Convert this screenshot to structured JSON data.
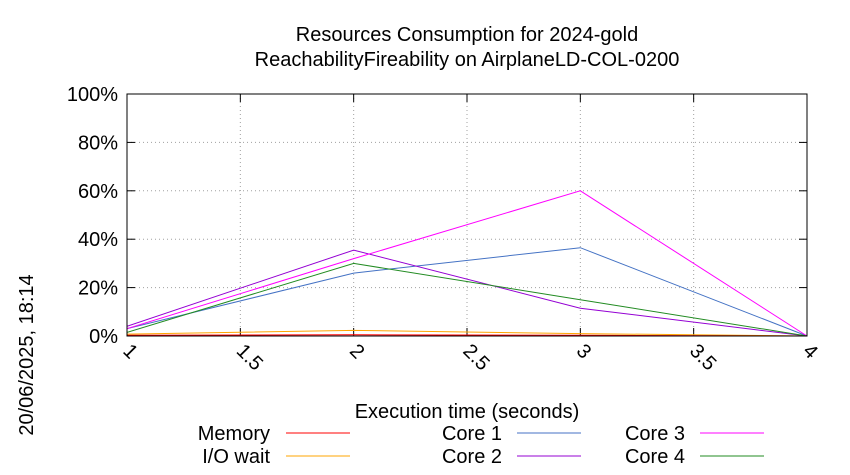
{
  "chart_data": {
    "type": "line",
    "title": "Resources Consumption for 2024-gold",
    "subtitle": "ReachabilityFireability on AirplaneLD-COL-0200",
    "xlabel": "Execution time (seconds)",
    "ylabel": "",
    "side_label": "20/06/2025, 18:14",
    "xlim": [
      1,
      4
    ],
    "ylim": [
      0,
      100
    ],
    "x_ticks": [
      "1",
      "1.5",
      "2",
      "2.5",
      "3",
      "3.5",
      "4"
    ],
    "y_ticks": [
      "0%",
      "20%",
      "40%",
      "60%",
      "80%",
      "100%"
    ],
    "grid": true,
    "legend_position": "bottom",
    "series": [
      {
        "name": "Memory",
        "color": "#ff0000",
        "x": [
          1,
          2,
          3,
          4
        ],
        "values": [
          0.3,
          0.5,
          0.3,
          0
        ]
      },
      {
        "name": "I/O wait",
        "color": "#ffa500",
        "x": [
          1,
          2,
          3,
          4
        ],
        "values": [
          0.8,
          2.3,
          1.0,
          0
        ]
      },
      {
        "name": "Core 1",
        "color": "#4472c4",
        "x": [
          1,
          2,
          3,
          4
        ],
        "values": [
          3,
          26,
          36.5,
          0
        ]
      },
      {
        "name": "Core 2",
        "color": "#9400d3",
        "x": [
          1,
          2,
          3,
          4
        ],
        "values": [
          4,
          35.5,
          11.5,
          0
        ]
      },
      {
        "name": "Core 3",
        "color": "#ff00ff",
        "x": [
          1,
          2,
          3,
          4
        ],
        "values": [
          3,
          32,
          60,
          0
        ]
      },
      {
        "name": "Core 4",
        "color": "#228b22",
        "x": [
          1,
          2,
          3,
          4
        ],
        "values": [
          1.5,
          30,
          15,
          0
        ]
      }
    ]
  }
}
